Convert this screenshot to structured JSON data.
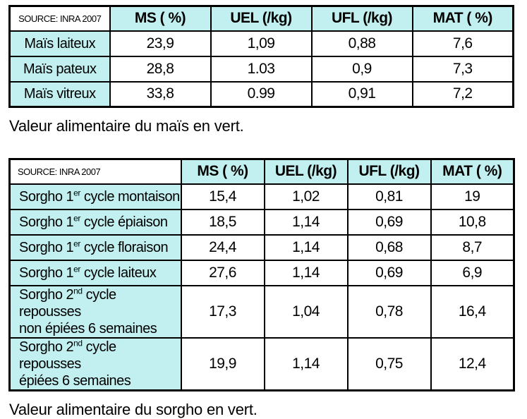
{
  "colors": {
    "cell_fill_cyan": "#c2f0f0",
    "border": "#000000",
    "background": "#ffffff",
    "text": "#000000"
  },
  "tables": [
    {
      "source_label": "SOURCE: INRA 2007",
      "columns": [
        "MS ( %)",
        "UEL (/kg)",
        "UFL (/kg)",
        "MAT ( %)"
      ],
      "rows": [
        {
          "label": {
            "prefix": "Maïs laiteux",
            "sup": "",
            "rest": "",
            "line2": ""
          },
          "values": [
            "23,9",
            "1,09",
            "0,88",
            "7,6"
          ]
        },
        {
          "label": {
            "prefix": "Maïs pateux",
            "sup": "",
            "rest": "",
            "line2": ""
          },
          "values": [
            "28,8",
            "1.03",
            "0,9",
            "7,3"
          ]
        },
        {
          "label": {
            "prefix": "Maïs vitreux",
            "sup": "",
            "rest": "",
            "line2": ""
          },
          "values": [
            "33,8",
            "0.99",
            "0,91",
            "7,2"
          ]
        }
      ],
      "caption": "Valeur alimentaire du maïs en vert."
    },
    {
      "source_label": "SOURCE: INRA 2007",
      "columns": [
        "MS ( %)",
        "UEL (/kg)",
        "UFL (/kg)",
        "MAT ( %)"
      ],
      "rows": [
        {
          "label": {
            "prefix": "Sorgho 1",
            "sup": "er",
            "rest": " cycle montaison",
            "line2": ""
          },
          "values": [
            "15,4",
            "1,02",
            "0,81",
            "19"
          ]
        },
        {
          "label": {
            "prefix": "Sorgho 1",
            "sup": "er",
            "rest": " cycle épiaison",
            "line2": ""
          },
          "values": [
            "18,5",
            "1,14",
            "0,69",
            "10,8"
          ]
        },
        {
          "label": {
            "prefix": "Sorgho 1",
            "sup": "er",
            "rest": " cycle floraison",
            "line2": ""
          },
          "values": [
            "24,4",
            "1,14",
            "0,68",
            "8,7"
          ]
        },
        {
          "label": {
            "prefix": "Sorgho 1",
            "sup": "er",
            "rest": " cycle laiteux",
            "line2": ""
          },
          "values": [
            "27,6",
            "1,14",
            "0,69",
            "6,9"
          ]
        },
        {
          "label": {
            "prefix": "Sorgho 2",
            "sup": "nd",
            "rest": " cycle repousses",
            "line2": "non épiées 6 semaines"
          },
          "values": [
            "17,3",
            "1,04",
            "0,78",
            "16,4"
          ]
        },
        {
          "label": {
            "prefix": "Sorgho 2",
            "sup": "nd",
            "rest": " cycle repousses",
            "line2": "épiées 6 semaines"
          },
          "values": [
            "19,9",
            "1,14",
            "0,75",
            "12,4"
          ]
        }
      ],
      "caption": "Valeur alimentaire du sorgho en vert."
    }
  ]
}
